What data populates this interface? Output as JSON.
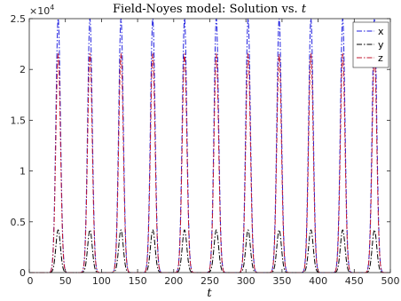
{
  "chart_data": {
    "type": "line",
    "title_prefix": "Field-Noyes model: Solution vs.",
    "title_var": "t",
    "xlabel": "t",
    "ylabel": "",
    "xlim": [
      0,
      500
    ],
    "ylim": [
      0,
      25000
    ],
    "x_ticks": [
      0,
      50,
      100,
      150,
      200,
      250,
      300,
      350,
      400,
      450,
      500
    ],
    "y_ticks": [
      0,
      5000,
      10000,
      15000,
      20000,
      25000
    ],
    "y_tick_labels": [
      "0",
      "0.5",
      "1",
      "1.5",
      "2",
      "2.5"
    ],
    "y_exponent_base": "×10",
    "y_exponent_power": "4",
    "grid": false,
    "legend_position": "top-right",
    "peak_times": [
      40,
      84,
      127,
      171,
      215,
      259,
      303,
      346,
      390,
      434,
      478
    ],
    "series": [
      {
        "name": "x",
        "color": "#1f1fdf",
        "dash": "6,2,1.5,2",
        "peak_value": 25000,
        "baseline": 0
      },
      {
        "name": "y",
        "color": "#000000",
        "dash": "6,2,1.5,2",
        "peak_value": 4200,
        "baseline": 0
      },
      {
        "name": "z",
        "color": "#c0142d",
        "dash": "6,2,1.5,2",
        "peak_value": 21500,
        "baseline": 0
      }
    ]
  }
}
